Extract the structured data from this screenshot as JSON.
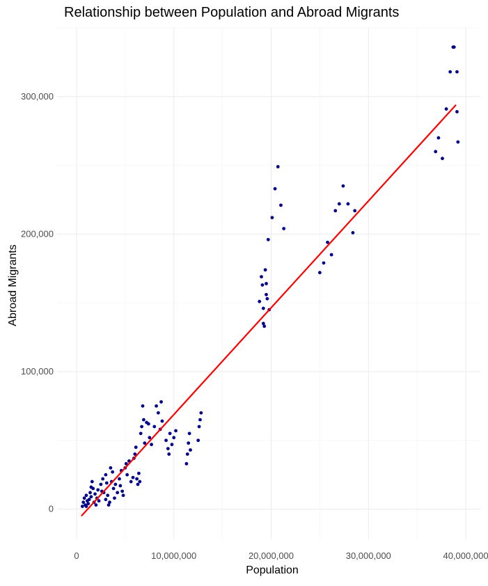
{
  "chart_data": {
    "type": "scatter",
    "title": "Relationship between Population and Abroad Migrants",
    "xlabel": "Population",
    "ylabel": "Abroad Migrants",
    "xlim": [
      -2000000,
      41500000
    ],
    "ylim": [
      -22000,
      350000
    ],
    "x_ticks": [
      0,
      10000000,
      20000000,
      30000000,
      40000000
    ],
    "x_tick_labels": [
      "0",
      "10,000,000",
      "20,000,000",
      "30,000,000",
      "40,000,000"
    ],
    "y_ticks": [
      0,
      100000,
      200000,
      300000
    ],
    "y_tick_labels": [
      "0",
      "100,000",
      "200,000",
      "300,000"
    ],
    "grid": true,
    "point_color": "#00008b",
    "line_color": "#ff0000",
    "points": [
      [
        600000,
        2000
      ],
      [
        700000,
        5000
      ],
      [
        800000,
        8000
      ],
      [
        900000,
        3000
      ],
      [
        1000000,
        10000
      ],
      [
        1100000,
        6000
      ],
      [
        1200000,
        4000
      ],
      [
        1300000,
        7000
      ],
      [
        1400000,
        12000
      ],
      [
        1500000,
        9000
      ],
      [
        1600000,
        20000
      ],
      [
        1700000,
        15000
      ],
      [
        1800000,
        5000
      ],
      [
        1900000,
        11000
      ],
      [
        2000000,
        3000
      ],
      [
        2100000,
        8000
      ],
      [
        2200000,
        14000
      ],
      [
        2300000,
        6000
      ],
      [
        1500000,
        16000
      ],
      [
        1000000,
        2000
      ],
      [
        2500000,
        18000
      ],
      [
        2700000,
        22000
      ],
      [
        2800000,
        12000
      ],
      [
        3000000,
        25000
      ],
      [
        3200000,
        10000
      ],
      [
        3400000,
        5000
      ],
      [
        3500000,
        30000
      ],
      [
        3600000,
        20000
      ],
      [
        3700000,
        27000
      ],
      [
        3800000,
        15000
      ],
      [
        3900000,
        8000
      ],
      [
        4000000,
        18000
      ],
      [
        4200000,
        12000
      ],
      [
        4400000,
        22000
      ],
      [
        4500000,
        17000
      ],
      [
        4700000,
        13000
      ],
      [
        4800000,
        10000
      ],
      [
        5000000,
        30000
      ],
      [
        5200000,
        25000
      ],
      [
        5400000,
        35000
      ],
      [
        5600000,
        20000
      ],
      [
        5800000,
        23000
      ],
      [
        6000000,
        40000
      ],
      [
        6100000,
        45000
      ],
      [
        6200000,
        22000
      ],
      [
        6300000,
        18000
      ],
      [
        6400000,
        26000
      ],
      [
        6500000,
        20000
      ],
      [
        6600000,
        55000
      ],
      [
        6700000,
        60000
      ],
      [
        6800000,
        75000
      ],
      [
        6900000,
        65000
      ],
      [
        7000000,
        48000
      ],
      [
        7200000,
        63000
      ],
      [
        7400000,
        62000
      ],
      [
        7500000,
        52000
      ],
      [
        7700000,
        47000
      ],
      [
        8000000,
        60000
      ],
      [
        8200000,
        75000
      ],
      [
        8400000,
        70000
      ],
      [
        8600000,
        58000
      ],
      [
        8700000,
        78000
      ],
      [
        8800000,
        64000
      ],
      [
        9200000,
        50000
      ],
      [
        9400000,
        44000
      ],
      [
        9500000,
        40000
      ],
      [
        9600000,
        55000
      ],
      [
        9800000,
        47000
      ],
      [
        10000000,
        52000
      ],
      [
        10200000,
        57000
      ],
      [
        11300000,
        33000
      ],
      [
        11400000,
        40000
      ],
      [
        11500000,
        48000
      ],
      [
        11600000,
        55000
      ],
      [
        11700000,
        43000
      ],
      [
        12500000,
        50000
      ],
      [
        12600000,
        60000
      ],
      [
        12700000,
        65000
      ],
      [
        12800000,
        70000
      ],
      [
        2600000,
        13000
      ],
      [
        3000000,
        7000
      ],
      [
        3300000,
        3000
      ],
      [
        3100000,
        19000
      ],
      [
        4600000,
        28000
      ],
      [
        5100000,
        33000
      ],
      [
        5900000,
        37000
      ],
      [
        18800000,
        151000
      ],
      [
        19000000,
        169000
      ],
      [
        19100000,
        163000
      ],
      [
        19200000,
        146000
      ],
      [
        19200000,
        135000
      ],
      [
        19300000,
        133000
      ],
      [
        19400000,
        174000
      ],
      [
        19500000,
        164000
      ],
      [
        19500000,
        156000
      ],
      [
        19600000,
        153000
      ],
      [
        19700000,
        196000
      ],
      [
        19800000,
        145000
      ],
      [
        20100000,
        212000
      ],
      [
        20400000,
        233000
      ],
      [
        20700000,
        249000
      ],
      [
        21000000,
        221000
      ],
      [
        21300000,
        204000
      ],
      [
        25000000,
        172000
      ],
      [
        25400000,
        179000
      ],
      [
        25800000,
        194000
      ],
      [
        26200000,
        185000
      ],
      [
        26600000,
        217000
      ],
      [
        27000000,
        222000
      ],
      [
        27400000,
        235000
      ],
      [
        27900000,
        222000
      ],
      [
        28400000,
        201000
      ],
      [
        28600000,
        217000
      ],
      [
        36900000,
        260000
      ],
      [
        37200000,
        270000
      ],
      [
        37600000,
        255000
      ],
      [
        38000000,
        291000
      ],
      [
        38400000,
        318000
      ],
      [
        38700000,
        336000
      ],
      [
        38800000,
        336000
      ],
      [
        39100000,
        318000
      ],
      [
        39100000,
        289000
      ],
      [
        39200000,
        267000
      ]
    ],
    "trend_line": {
      "x": [
        500000,
        39000000
      ],
      "y": [
        -5000,
        294000
      ]
    }
  }
}
